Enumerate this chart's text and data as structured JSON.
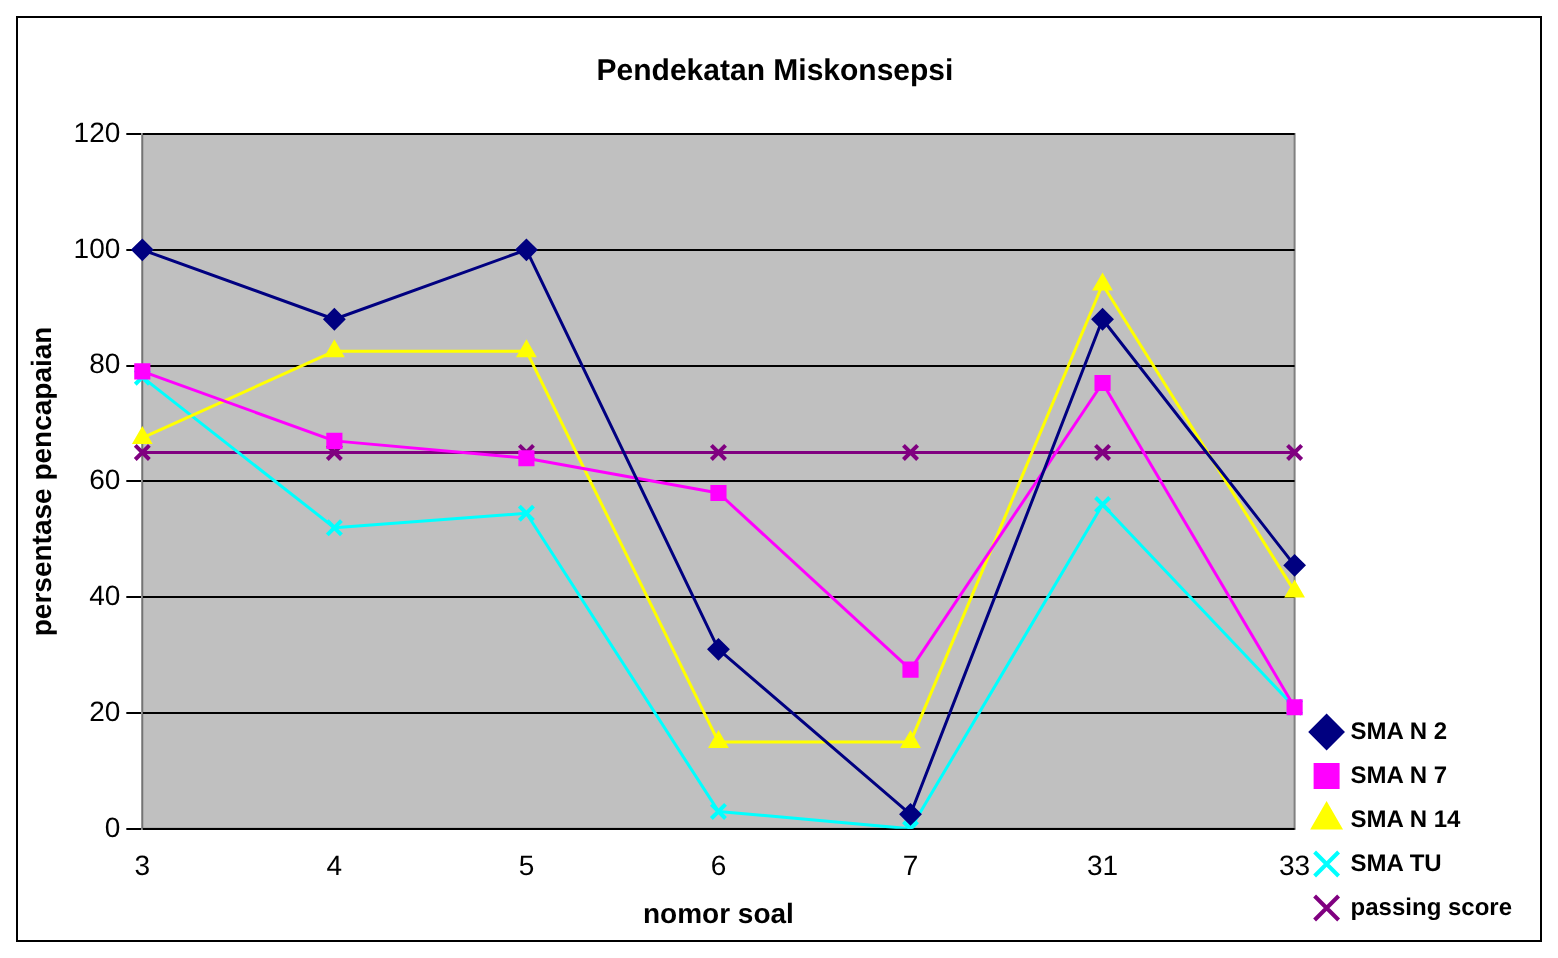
{
  "chart_data": {
    "type": "line",
    "title": "Pendekatan Miskonsepsi",
    "xlabel": "nomor soal",
    "ylabel": "persentase pencapaian",
    "categories": [
      "3",
      "4",
      "5",
      "6",
      "7",
      "31",
      "33"
    ],
    "series": [
      {
        "name": "SMA N 2",
        "color": "#000080",
        "marker": "diamond",
        "values": [
          100,
          88,
          100,
          31,
          2.5,
          88,
          45.5
        ]
      },
      {
        "name": "SMA N 7",
        "color": "#ff00ff",
        "marker": "square",
        "values": [
          79,
          67,
          64,
          58,
          27.5,
          77,
          21
        ]
      },
      {
        "name": "SMA N 14",
        "color": "#ffff00",
        "marker": "triangle",
        "values": [
          67.5,
          82.5,
          82.5,
          15,
          15,
          94,
          41
        ]
      },
      {
        "name": "SMA TU",
        "color": "#00ffff",
        "marker": "cross",
        "values": [
          78,
          52,
          54.5,
          3,
          0,
          56,
          21
        ]
      },
      {
        "name": "passing score",
        "color": "#800080",
        "marker": "cross",
        "values": [
          65,
          65,
          65,
          65,
          65,
          65,
          65
        ]
      }
    ],
    "ylim": [
      0,
      120
    ],
    "yticks": [
      0,
      20,
      40,
      60,
      80,
      100,
      120
    ],
    "grid": "y",
    "legend": "right"
  }
}
